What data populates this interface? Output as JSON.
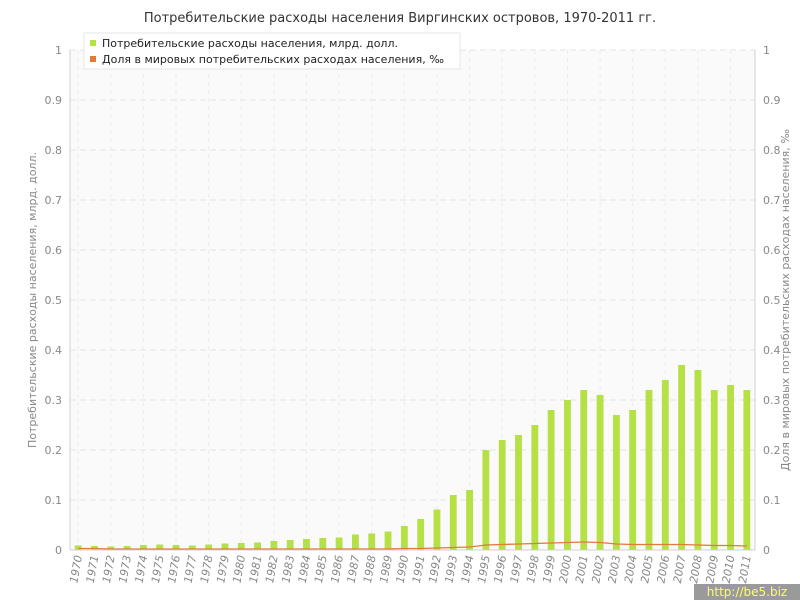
{
  "chart_data": {
    "type": "bar",
    "title": "Потребительские расходы населения Виргинских островов, 1970-2011 гг.",
    "ylabel": "Потребительские расходы населения, млрд. долл.",
    "y2label": "Доля в мировых потребительских расходах населения, ‰",
    "ylim": [
      0,
      1
    ],
    "y2lim": [
      0,
      1
    ],
    "yticks": [
      "0",
      "0.1",
      "0.2",
      "0.3",
      "0.4",
      "0.5",
      "0.6",
      "0.7",
      "0.8",
      "0.9",
      "1"
    ],
    "grid": true,
    "legend_position": "top-left",
    "categories": [
      "1970",
      "1971",
      "1972",
      "1973",
      "1974",
      "1975",
      "1976",
      "1977",
      "1978",
      "1979",
      "1980",
      "1981",
      "1982",
      "1983",
      "1984",
      "1985",
      "1986",
      "1987",
      "1988",
      "1989",
      "1990",
      "1991",
      "1992",
      "1993",
      "1994",
      "1995",
      "1996",
      "1997",
      "1998",
      "1999",
      "2000",
      "2001",
      "2002",
      "2003",
      "2004",
      "2005",
      "2006",
      "2007",
      "2008",
      "2009",
      "2010",
      "2011"
    ],
    "series": [
      {
        "name": "Потребительские расходы населения, млрд. долл.",
        "kind": "bar",
        "axis": "left",
        "color": "#b5e046",
        "values": [
          0.009,
          0.008,
          0.007,
          0.008,
          0.01,
          0.011,
          0.01,
          0.009,
          0.011,
          0.013,
          0.014,
          0.015,
          0.018,
          0.02,
          0.022,
          0.024,
          0.025,
          0.031,
          0.033,
          0.037,
          0.048,
          0.062,
          0.081,
          0.11,
          0.12,
          0.2,
          0.22,
          0.23,
          0.25,
          0.28,
          0.3,
          0.32,
          0.31,
          0.27,
          0.28,
          0.32,
          0.34,
          0.37,
          0.36,
          0.32,
          0.33,
          0.32
        ]
      },
      {
        "name": "Доля в мировых потребительских расходах населения, ‰",
        "kind": "line",
        "axis": "right",
        "color": "#e07b39",
        "values": [
          0.003,
          0.003,
          0.002,
          0.002,
          0.002,
          0.002,
          0.002,
          0.002,
          0.002,
          0.002,
          0.002,
          0.002,
          0.002,
          0.002,
          0.002,
          0.002,
          0.002,
          0.002,
          0.002,
          0.002,
          0.003,
          0.003,
          0.004,
          0.005,
          0.006,
          0.01,
          0.011,
          0.012,
          0.013,
          0.014,
          0.015,
          0.016,
          0.015,
          0.012,
          0.011,
          0.011,
          0.011,
          0.011,
          0.01,
          0.009,
          0.009,
          0.008
        ]
      }
    ]
  },
  "watermark": "http://be5.biz"
}
